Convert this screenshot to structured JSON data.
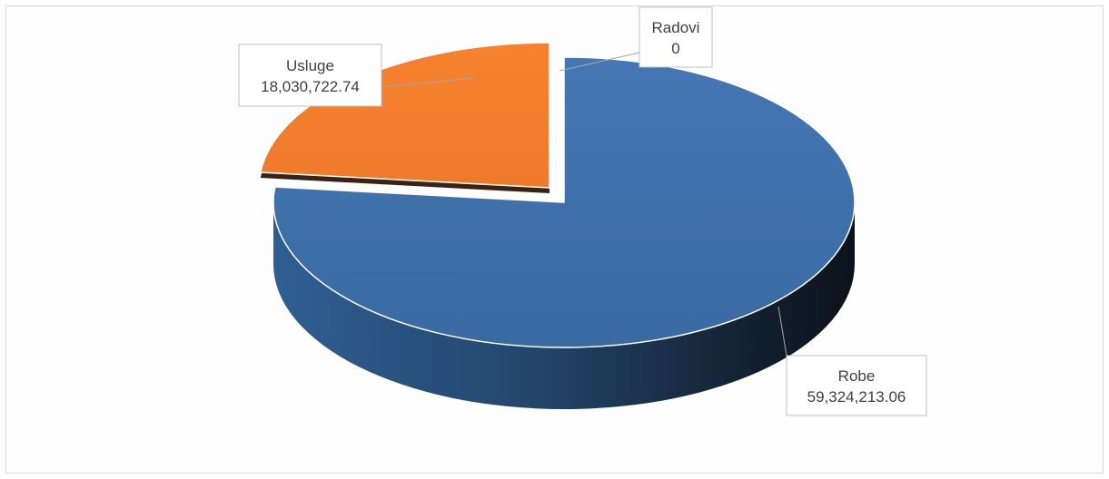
{
  "chart_data": {
    "type": "pie",
    "style": "3d-exploded",
    "title": "",
    "slices": [
      {
        "name": "Robe",
        "value": 59324213.06,
        "display": "59,324,213.06",
        "color": "#3c6ea8"
      },
      {
        "name": "Usluge",
        "value": 18030722.74,
        "display": "18,030,722.74",
        "color": "#f27c2c"
      },
      {
        "name": "Radovi",
        "value": 0,
        "display": "0",
        "color": "#7f7f7f"
      }
    ],
    "legend": "none",
    "data_labels": "callout-boxes"
  }
}
